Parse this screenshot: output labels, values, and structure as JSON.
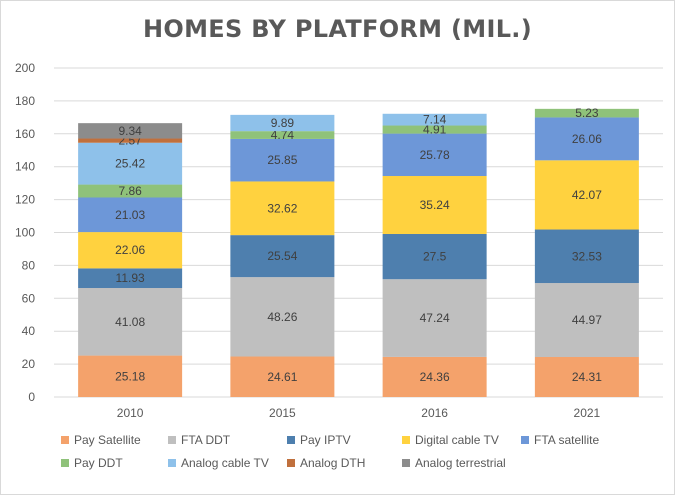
{
  "chart_data": {
    "type": "bar",
    "stacked": true,
    "title": "HOMES BY PLATFORM (MIL.)",
    "xlabel": "",
    "ylabel": "",
    "ylim": [
      0,
      200
    ],
    "yticks": [
      0,
      20,
      40,
      60,
      80,
      100,
      120,
      140,
      160,
      180,
      200
    ],
    "grid": true,
    "legend_position": "bottom",
    "categories": [
      "2010",
      "2015",
      "2016",
      "2021"
    ],
    "series": [
      {
        "name": "Pay Satellite",
        "color": "#f4a26b",
        "values": [
          25.18,
          24.61,
          24.36,
          24.31
        ],
        "labels": [
          "25.18",
          "24.61",
          "24.36",
          "24.31"
        ]
      },
      {
        "name": "FTA DDT",
        "color": "#bfbfbf",
        "values": [
          41.08,
          48.26,
          47.24,
          44.97
        ],
        "labels": [
          "41.08",
          "48.26",
          "47.24",
          "44.97"
        ]
      },
      {
        "name": "Pay IPTV",
        "color": "#4e7fae",
        "values": [
          11.93,
          25.54,
          27.5,
          32.53
        ],
        "labels": [
          "11.93",
          "25.54",
          "27.5",
          "32.53"
        ]
      },
      {
        "name": "Digital cable TV",
        "color": "#ffd23f",
        "values": [
          22.06,
          32.62,
          35.24,
          42.07
        ],
        "labels": [
          "22.06",
          "32.62",
          "35.24",
          "42.07"
        ]
      },
      {
        "name": "FTA satellite",
        "color": "#6d97d8",
        "values": [
          21.03,
          25.85,
          25.78,
          26.06
        ],
        "labels": [
          "21.03",
          "25.85",
          "25.78",
          "26.06"
        ]
      },
      {
        "name": "Pay DDT",
        "color": "#8fc27a",
        "values": [
          7.86,
          4.74,
          4.91,
          5.23
        ],
        "labels": [
          "7.86",
          "4.74",
          "4.91",
          "5.23"
        ]
      },
      {
        "name": "Analog cable TV",
        "color": "#8ec1ea",
        "values": [
          25.42,
          9.89,
          7.14,
          0
        ],
        "labels": [
          "25.42",
          "9.89",
          "7.14",
          ""
        ]
      },
      {
        "name": "Analog DTH",
        "color": "#c0703d",
        "values": [
          2.57,
          0,
          0,
          0
        ],
        "labels": [
          "2.57",
          "",
          "",
          ""
        ]
      },
      {
        "name": "Analog terrestrial",
        "color": "#8c8c8c",
        "values": [
          9.34,
          0,
          0,
          0
        ],
        "labels": [
          "9.34",
          "",
          "",
          ""
        ]
      }
    ],
    "colors": {
      "gridline": "#d9d9d9",
      "axis_text": "#595959",
      "data_label": "#404040"
    }
  }
}
